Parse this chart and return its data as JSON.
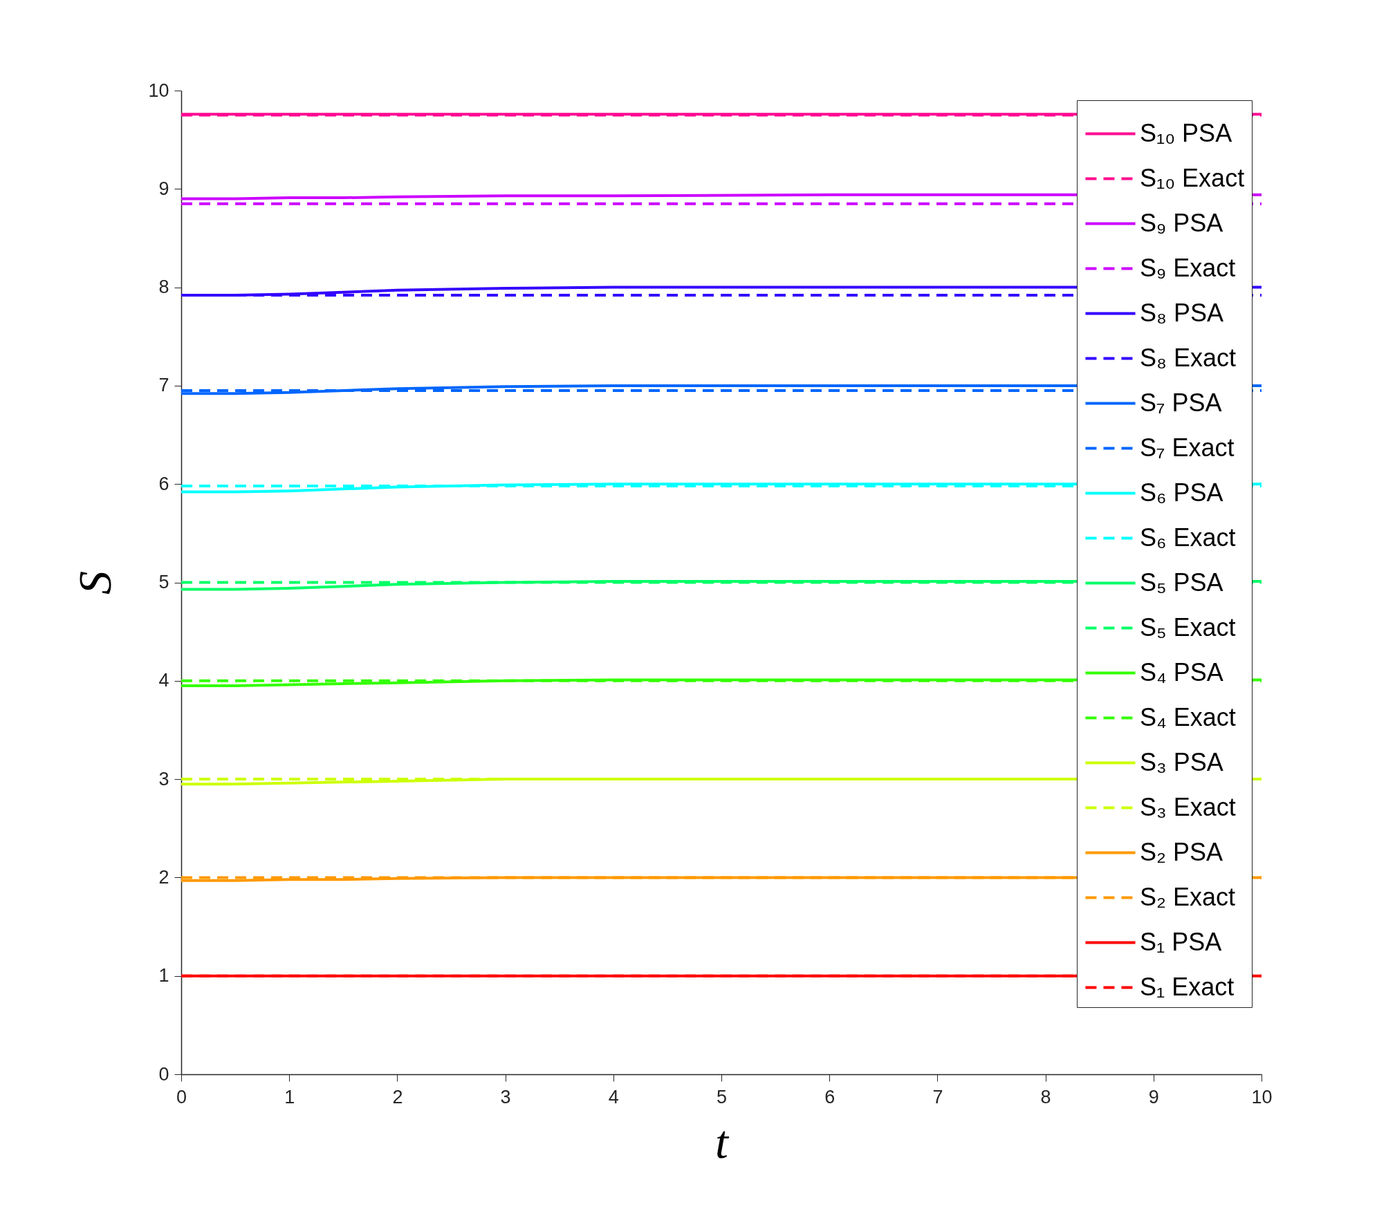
{
  "chart_data": {
    "type": "line",
    "xlabel": "t",
    "ylabel": "S",
    "x": [
      0,
      0.5,
      1,
      1.5,
      2,
      3,
      4,
      6,
      8,
      10
    ],
    "xlim": [
      0,
      10
    ],
    "ylim": [
      0,
      10
    ],
    "xticks": [
      0,
      1,
      2,
      3,
      4,
      5,
      6,
      7,
      8,
      9,
      10
    ],
    "yticks": [
      0,
      1,
      2,
      3,
      4,
      5,
      6,
      7,
      8,
      9,
      10
    ],
    "grid": false,
    "legend": "top right",
    "series": [
      {
        "name": "S₁₀ PSA",
        "color": "#ff0890",
        "line_style": "solid",
        "values": [
          9.76,
          9.76,
          9.76,
          9.76,
          9.76,
          9.76,
          9.76,
          9.76,
          9.76,
          9.76
        ]
      },
      {
        "name": "S₁₀ Exact",
        "color": "#ff0890",
        "line_style": "dashed",
        "values": [
          9.75,
          9.75,
          9.75,
          9.75,
          9.75,
          9.75,
          9.75,
          9.75,
          9.75,
          9.75
        ]
      },
      {
        "name": "S₉ PSA",
        "color": "#cc00ff",
        "line_style": "solid",
        "values": [
          8.9,
          8.9,
          8.91,
          8.91,
          8.92,
          8.93,
          8.93,
          8.94,
          8.94,
          8.94
        ]
      },
      {
        "name": "S₉ Exact",
        "color": "#cc00ff",
        "line_style": "dashed",
        "values": [
          8.85,
          8.85,
          8.85,
          8.85,
          8.85,
          8.85,
          8.85,
          8.85,
          8.85,
          8.85
        ]
      },
      {
        "name": "S₈ PSA",
        "color": "#3300ff",
        "line_style": "solid",
        "values": [
          7.92,
          7.92,
          7.93,
          7.95,
          7.97,
          7.99,
          8.0,
          8.0,
          8.0,
          8.0
        ]
      },
      {
        "name": "S₈ Exact",
        "color": "#3300ff",
        "line_style": "dashed",
        "values": [
          7.92,
          7.92,
          7.92,
          7.92,
          7.92,
          7.92,
          7.92,
          7.92,
          7.92,
          7.92
        ]
      },
      {
        "name": "S₇ PSA",
        "color": "#0066ff",
        "line_style": "solid",
        "values": [
          6.92,
          6.92,
          6.93,
          6.95,
          6.97,
          6.99,
          7.0,
          7.0,
          7.0,
          7.0
        ]
      },
      {
        "name": "S₇ Exact",
        "color": "#0066ff",
        "line_style": "dashed",
        "values": [
          6.95,
          6.95,
          6.95,
          6.95,
          6.95,
          6.95,
          6.95,
          6.95,
          6.95,
          6.95
        ]
      },
      {
        "name": "S₆ PSA",
        "color": "#00ffff",
        "line_style": "solid",
        "values": [
          5.92,
          5.92,
          5.93,
          5.95,
          5.97,
          5.99,
          6.0,
          6.0,
          6.0,
          6.0
        ]
      },
      {
        "name": "S₆ Exact",
        "color": "#00ffff",
        "line_style": "dashed",
        "values": [
          5.98,
          5.98,
          5.98,
          5.98,
          5.98,
          5.98,
          5.98,
          5.98,
          5.98,
          5.98
        ]
      },
      {
        "name": "S₅ PSA",
        "color": "#00ff66",
        "line_style": "solid",
        "values": [
          4.93,
          4.93,
          4.94,
          4.96,
          4.98,
          5.0,
          5.01,
          5.01,
          5.01,
          5.01
        ]
      },
      {
        "name": "S₅ Exact",
        "color": "#00ff66",
        "line_style": "dashed",
        "values": [
          5.0,
          5.0,
          5.0,
          5.0,
          5.0,
          5.0,
          5.0,
          5.0,
          5.0,
          5.0
        ]
      },
      {
        "name": "S₄ PSA",
        "color": "#33ff00",
        "line_style": "solid",
        "values": [
          3.95,
          3.95,
          3.96,
          3.97,
          3.98,
          4.0,
          4.01,
          4.01,
          4.01,
          4.01
        ]
      },
      {
        "name": "S₄ Exact",
        "color": "#33ff00",
        "line_style": "dashed",
        "values": [
          4.0,
          4.0,
          4.0,
          4.0,
          4.0,
          4.0,
          4.0,
          4.0,
          4.0,
          4.0
        ]
      },
      {
        "name": "S₃ PSA",
        "color": "#ccff00",
        "line_style": "solid",
        "values": [
          2.95,
          2.95,
          2.96,
          2.97,
          2.98,
          3.0,
          3.0,
          3.0,
          3.0,
          3.0
        ]
      },
      {
        "name": "S₃ Exact",
        "color": "#ccff00",
        "line_style": "dashed",
        "values": [
          3.0,
          3.0,
          3.0,
          3.0,
          3.0,
          3.0,
          3.0,
          3.0,
          3.0,
          3.0
        ]
      },
      {
        "name": "S₂ PSA",
        "color": "#ff9900",
        "line_style": "solid",
        "values": [
          1.97,
          1.97,
          1.98,
          1.98,
          1.99,
          2.0,
          2.0,
          2.0,
          2.0,
          2.0
        ]
      },
      {
        "name": "S₂ Exact",
        "color": "#ff9900",
        "line_style": "dashed",
        "values": [
          2.0,
          2.0,
          2.0,
          2.0,
          2.0,
          2.0,
          2.0,
          2.0,
          2.0,
          2.0
        ]
      },
      {
        "name": "S₁ PSA",
        "color": "#ff0000",
        "line_style": "solid",
        "values": [
          1.0,
          1.0,
          1.0,
          1.0,
          1.0,
          1.0,
          1.0,
          1.0,
          1.0,
          1.0
        ]
      },
      {
        "name": "S₁ Exact",
        "color": "#ff0000",
        "line_style": "dashed",
        "values": [
          1.0,
          1.0,
          1.0,
          1.0,
          1.0,
          1.0,
          1.0,
          1.0,
          1.0,
          1.0
        ]
      }
    ]
  }
}
